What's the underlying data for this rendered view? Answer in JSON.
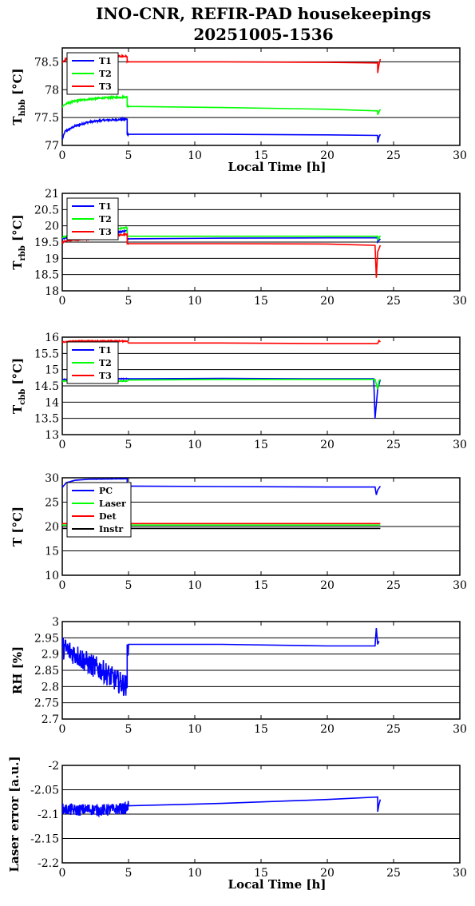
{
  "figure": {
    "title_line1": "INO-CNR, REFIR-PAD housekeepings",
    "title_line2": "20251005-1536"
  },
  "chart_data": [
    {
      "type": "line",
      "ylabel_main": "T",
      "ylabel_sub": "hbb",
      "ylabel_unit": " [°C]",
      "xlabel": "Local Time [h]",
      "xlim": [
        0,
        30
      ],
      "ylim": [
        77,
        78.75
      ],
      "xticks": [
        0,
        5,
        10,
        15,
        20,
        25,
        30
      ],
      "yticks": [
        77,
        77.5,
        78,
        78.5
      ],
      "ytick_labels": [
        "77",
        "77.5",
        "78",
        "78.5"
      ],
      "legend": "top-left",
      "series": [
        {
          "name": "T1",
          "color": "#0000ff",
          "noise": 0.015,
          "x": [
            0,
            0.2,
            1,
            2,
            3,
            4,
            4.9,
            4.9,
            5,
            12,
            20,
            23.8,
            23.8,
            23.9,
            24
          ],
          "y": [
            77.1,
            77.25,
            77.35,
            77.42,
            77.45,
            77.46,
            77.47,
            77.2,
            77.2,
            77.2,
            77.19,
            77.18,
            77.05,
            77.15,
            77.2
          ]
        },
        {
          "name": "T2",
          "color": "#00ff00",
          "noise": 0.015,
          "x": [
            0,
            0.3,
            1,
            2,
            3,
            4,
            4.9,
            4.9,
            5,
            12,
            20,
            23.8,
            23.8,
            23.9,
            24
          ],
          "y": [
            77.7,
            77.75,
            77.8,
            77.83,
            77.85,
            77.86,
            77.87,
            77.7,
            77.7,
            77.68,
            77.65,
            77.62,
            77.55,
            77.6,
            77.65
          ]
        },
        {
          "name": "T3",
          "color": "#ff0000",
          "noise": 0.015,
          "x": [
            0,
            0.3,
            1,
            2,
            3,
            4,
            4.9,
            4.9,
            5,
            12,
            20,
            23.8,
            23.8,
            23.9,
            24
          ],
          "y": [
            78.5,
            78.55,
            78.57,
            78.58,
            78.59,
            78.6,
            78.6,
            78.5,
            78.5,
            78.5,
            78.49,
            78.48,
            78.3,
            78.45,
            78.55
          ]
        }
      ]
    },
    {
      "type": "line",
      "ylabel_main": "T",
      "ylabel_sub": "rbb",
      "ylabel_unit": " [°C]",
      "xlabel": "",
      "xlim": [
        0,
        30
      ],
      "ylim": [
        18,
        21
      ],
      "xticks": [
        0,
        5,
        10,
        15,
        20,
        25,
        30
      ],
      "yticks": [
        18,
        18.5,
        19,
        19.5,
        20,
        20.5,
        21
      ],
      "ytick_labels": [
        "18",
        "18.5",
        "19",
        "19.5",
        "20",
        "20.5",
        "21"
      ],
      "legend": "top-left",
      "series": [
        {
          "name": "T1",
          "color": "#0000ff",
          "noise": 0.02,
          "x": [
            0,
            0.5,
            2,
            4,
            4.9,
            4.9,
            5,
            12,
            20,
            23.8,
            23.8,
            24
          ],
          "y": [
            19.6,
            19.65,
            19.7,
            19.8,
            19.85,
            19.6,
            19.6,
            19.62,
            19.63,
            19.63,
            19.5,
            19.6
          ]
        },
        {
          "name": "T2",
          "color": "#00ff00",
          "noise": 0.02,
          "x": [
            0,
            0.5,
            2,
            4,
            4.9,
            4.9,
            5,
            12,
            20,
            23.8,
            23.8,
            24
          ],
          "y": [
            19.65,
            19.7,
            19.78,
            19.9,
            19.95,
            19.68,
            19.68,
            19.68,
            19.68,
            19.68,
            19.55,
            19.7
          ]
        },
        {
          "name": "T3",
          "color": "#ff0000",
          "noise": 0.02,
          "x": [
            0,
            0.5,
            2,
            4,
            4.9,
            4.9,
            5,
            12,
            20,
            23.6,
            23.7,
            23.8,
            24
          ],
          "y": [
            19.5,
            19.55,
            19.6,
            19.7,
            19.75,
            19.45,
            19.45,
            19.45,
            19.44,
            19.4,
            18.4,
            19.2,
            19.4
          ]
        }
      ]
    },
    {
      "type": "line",
      "ylabel_main": "T",
      "ylabel_sub": "cbb",
      "ylabel_unit": " [°C]",
      "xlabel": "",
      "xlim": [
        0,
        30
      ],
      "ylim": [
        13,
        16
      ],
      "xticks": [
        0,
        5,
        10,
        15,
        20,
        25,
        30
      ],
      "yticks": [
        13,
        13.5,
        14,
        14.5,
        15,
        15.5,
        16
      ],
      "ytick_labels": [
        "13",
        "13.5",
        "14",
        "14.5",
        "15",
        "15.5",
        "16"
      ],
      "legend": "top-left",
      "series": [
        {
          "name": "T1",
          "color": "#0000ff",
          "noise": 0.01,
          "x": [
            0,
            4.9,
            5,
            12,
            20,
            23.5,
            23.6,
            23.8,
            24
          ],
          "y": [
            14.7,
            14.72,
            14.72,
            14.73,
            14.72,
            14.72,
            13.5,
            14.4,
            14.7
          ]
        },
        {
          "name": "T2",
          "color": "#00ff00",
          "noise": 0.01,
          "x": [
            0,
            4.9,
            5,
            12,
            20,
            23.6,
            23.8,
            23.9,
            24
          ],
          "y": [
            14.65,
            14.65,
            14.68,
            14.7,
            14.7,
            14.7,
            14.4,
            14.65,
            14.7
          ]
        },
        {
          "name": "T3",
          "color": "#ff0000",
          "noise": 0.015,
          "x": [
            0,
            1,
            4.9,
            5,
            12,
            20,
            23.8,
            23.9,
            24
          ],
          "y": [
            15.85,
            15.88,
            15.88,
            15.82,
            15.82,
            15.8,
            15.8,
            15.9,
            15.85
          ]
        }
      ]
    },
    {
      "type": "line",
      "ylabel_main": "T [°C]",
      "ylabel_sub": "",
      "ylabel_unit": "",
      "xlabel": "",
      "xlim": [
        0,
        30
      ],
      "ylim": [
        10,
        30
      ],
      "xticks": [
        0,
        5,
        10,
        15,
        20,
        25,
        30
      ],
      "yticks": [
        10,
        15,
        20,
        25,
        30
      ],
      "ytick_labels": [
        "10",
        "15",
        "20",
        "25",
        "30"
      ],
      "legend": "top-left",
      "series": [
        {
          "name": "PC",
          "color": "#0000ff",
          "noise": 0.03,
          "x": [
            0,
            0.3,
            1,
            2,
            4.9,
            4.9,
            5,
            12,
            20,
            23.6,
            23.7,
            23.8,
            24
          ],
          "y": [
            28,
            29,
            29.5,
            29.7,
            29.8,
            28.3,
            28.3,
            28.2,
            28.1,
            28.1,
            26.5,
            27.5,
            28.3
          ]
        },
        {
          "name": "Laser",
          "color": "#00ff00",
          "noise": 0.02,
          "x": [
            0,
            24
          ],
          "y": [
            20.3,
            20.3
          ]
        },
        {
          "name": "Det",
          "color": "#ff0000",
          "noise": 0.02,
          "x": [
            0,
            24
          ],
          "y": [
            20.6,
            20.6
          ]
        },
        {
          "name": "Instr",
          "color": "#000000",
          "noise": 0.02,
          "x": [
            0,
            24
          ],
          "y": [
            19.6,
            19.6
          ]
        }
      ]
    },
    {
      "type": "line",
      "ylabel_main": "RH [%]",
      "ylabel_sub": "",
      "ylabel_unit": "",
      "xlabel": "",
      "xlim": [
        0,
        30
      ],
      "ylim": [
        2.7,
        3
      ],
      "xticks": [
        0,
        5,
        10,
        15,
        20,
        25,
        30
      ],
      "yticks": [
        2.7,
        2.75,
        2.8,
        2.85,
        2.9,
        2.95,
        3
      ],
      "ytick_labels": [
        "2.7",
        "2.75",
        "2.8",
        "2.85",
        "2.9",
        "2.95",
        "3"
      ],
      "legend": "none",
      "series": [
        {
          "name": "",
          "color": "#0000ff",
          "noise": 0.035,
          "x": [
            0,
            1,
            2,
            3,
            4,
            4.9,
            4.9,
            5,
            12,
            20,
            23.6,
            23.7,
            23.8,
            23.9
          ],
          "y": [
            2.92,
            2.9,
            2.87,
            2.85,
            2.82,
            2.8,
            2.93,
            2.93,
            2.93,
            2.925,
            2.925,
            2.98,
            2.93,
            2.94
          ]
        }
      ]
    },
    {
      "type": "line",
      "ylabel_main": "Laser error [a.u.]",
      "ylabel_sub": "",
      "ylabel_unit": "",
      "xlabel": "Local Time [h]",
      "xlim": [
        0,
        30
      ],
      "ylim": [
        -2.2,
        -2
      ],
      "xticks": [
        0,
        5,
        10,
        15,
        20,
        25,
        30
      ],
      "yticks": [
        -2.2,
        -2.15,
        -2.1,
        -2.05,
        -2
      ],
      "ytick_labels": [
        "-2.2",
        "-2.15",
        "-2.1",
        "-2.05",
        "-2"
      ],
      "legend": "none",
      "series": [
        {
          "name": "",
          "color": "#0000ff",
          "noise": 0.012,
          "x": [
            0,
            1,
            2,
            3,
            4,
            4.9,
            5,
            12,
            20,
            23.8,
            23.8,
            23.9,
            24
          ],
          "y": [
            -2.09,
            -2.092,
            -2.09,
            -2.092,
            -2.09,
            -2.088,
            -2.083,
            -2.078,
            -2.07,
            -2.065,
            -2.095,
            -2.08,
            -2.07
          ]
        }
      ]
    }
  ]
}
